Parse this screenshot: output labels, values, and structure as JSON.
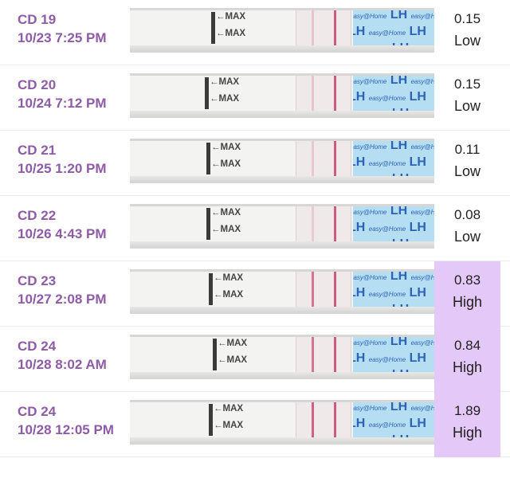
{
  "strip_text": {
    "max": "←MAX",
    "brand_lh": "LH",
    "brand_small": "easy@Home"
  },
  "colors": {
    "label": "#8e5ba6",
    "high_bg": "#e4c8f8",
    "strip_logo": "#b6def3",
    "band": "#c8436e"
  },
  "entries": [
    {
      "cycle_day": "CD 19",
      "datetime": "10/23 7:25 PM",
      "value": "0.15",
      "level": "Low",
      "high": false,
      "test_line_intensity": 0.15
    },
    {
      "cycle_day": "CD 20",
      "datetime": "10/24 7:12 PM",
      "value": "0.15",
      "level": "Low",
      "high": false,
      "test_line_intensity": 0.15
    },
    {
      "cycle_day": "CD 21",
      "datetime": "10/25 1:20 PM",
      "value": "0.11",
      "level": "Low",
      "high": false,
      "test_line_intensity": 0.11
    },
    {
      "cycle_day": "CD 22",
      "datetime": "10/26 4:43 PM",
      "value": "0.08",
      "level": "Low",
      "high": false,
      "test_line_intensity": 0.08
    },
    {
      "cycle_day": "CD 23",
      "datetime": "10/27 2:08 PM",
      "value": "0.83",
      "level": "High",
      "high": true,
      "test_line_intensity": 0.83
    },
    {
      "cycle_day": "CD 24",
      "datetime": "10/28 8:02 AM",
      "value": "0.84",
      "level": "High",
      "high": true,
      "test_line_intensity": 0.84
    },
    {
      "cycle_day": "CD 24",
      "datetime": "10/28 12:05 PM",
      "value": "1.89",
      "level": "High",
      "high": true,
      "test_line_intensity": 1.89
    }
  ]
}
